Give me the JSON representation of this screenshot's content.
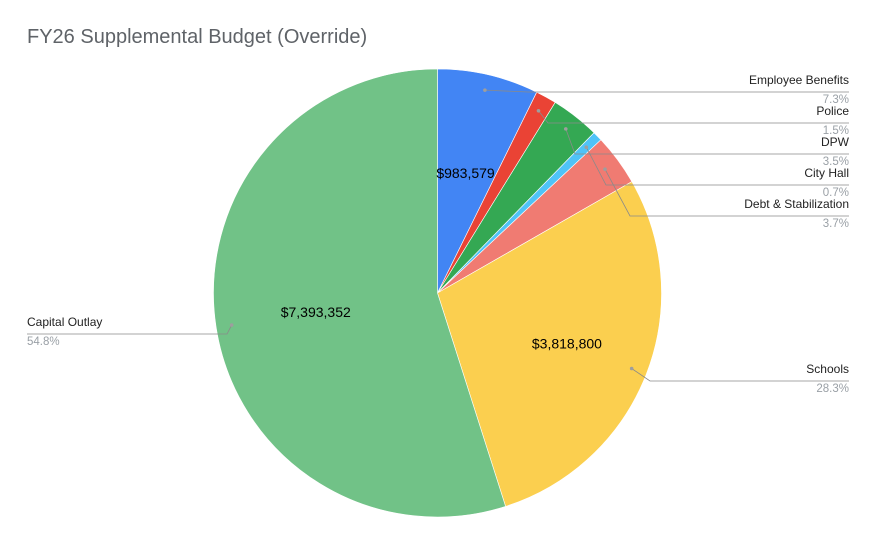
{
  "chart_data": {
    "type": "pie",
    "title": "FY26 Supplemental Budget (Override)",
    "start_angle_deg": 0,
    "direction": "clockwise",
    "legend_position": "outside labels",
    "slices": [
      {
        "label": "Employee Benefits",
        "percent_label": "7.3%",
        "value": 983579,
        "value_label": "$983,579",
        "color": "#4285f4"
      },
      {
        "label": "Police",
        "percent_label": "1.5%",
        "value": 202000,
        "value_label": "",
        "color": "#ea4335"
      },
      {
        "label": "DPW",
        "percent_label": "3.5%",
        "value": 472000,
        "value_label": "",
        "color": "#34a853"
      },
      {
        "label": "City Hall",
        "percent_label": "0.7%",
        "value": 94400,
        "value_label": "",
        "color": "#4fc3f7"
      },
      {
        "label": "Debt & Stabilization",
        "percent_label": "3.7%",
        "value": 499000,
        "value_label": "",
        "color": "#f07b72"
      },
      {
        "label": "Schools",
        "percent_label": "28.3%",
        "value": 3818800,
        "value_label": "$3,818,800",
        "color": "#fbcf4f"
      },
      {
        "label": "Capital Outlay",
        "percent_label": "54.8%",
        "value": 7393352,
        "value_label": "$7,393,352",
        "color": "#71c287"
      }
    ]
  }
}
